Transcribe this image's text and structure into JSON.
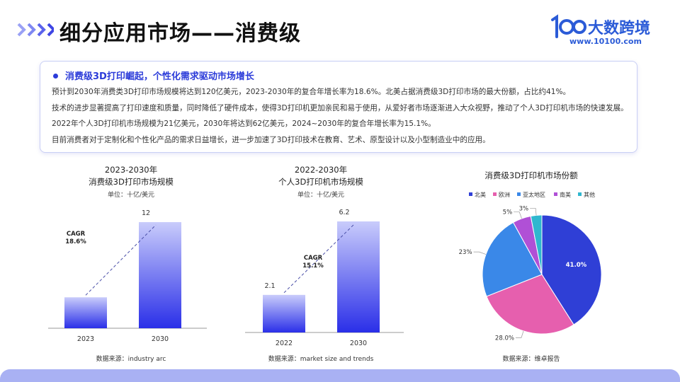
{
  "header": {
    "title": "细分应用市场——消费级",
    "logo_name": "大数跨境",
    "logo_url": "www.10100.com"
  },
  "summary": {
    "heading": "消费级3D打印崛起，个性化需求驱动市场增长",
    "lines": [
      "预计到2030年消费类3D打印市场规模将达到120亿美元，2023-2030年的复合年增长率为18.6%。北美占据消费级3D打印市场的最大份额，占比约41%。",
      "技术的进步显著提高了打印速度和质量，同时降低了硬件成本，使得3D打印机更加亲民和易于使用，从爱好者市场逐渐进入大众视野，推动了个人3D打印机市场的快速发展。2022年个人3D打印机市场规模为21亿美元，2030年将达到62亿美元，2024~2030年的复合年增长率为15.1%。",
      "目前消费者对于定制化和个性化产品的需求日益增长，进一步加速了3D打印技术在教育、艺术、原型设计以及小型制造业中的应用。"
    ]
  },
  "chart_data": [
    {
      "type": "bar",
      "title_line1": "2023-2030年",
      "title_line2": "消费级3D打印市场规模",
      "unit": "单位：十亿/美元",
      "categories": [
        "2023",
        "2030"
      ],
      "values": [
        3.5,
        12
      ],
      "value_labels": [
        "",
        "12"
      ],
      "annotation": {
        "line1": "CAGR",
        "line2": "18.6%"
      },
      "ylim": [
        0,
        12
      ],
      "source": "数据来源：industry arc"
    },
    {
      "type": "bar",
      "title_line1": "2022-2030年",
      "title_line2": "个人3D打印机市场规模",
      "unit": "单位：十亿/美元",
      "categories": [
        "2022",
        "2030"
      ],
      "values": [
        2.1,
        6.2
      ],
      "value_labels": [
        "2.1",
        "6.2"
      ],
      "annotation": {
        "line1": "CAGR",
        "line2": "15.1%"
      },
      "ylim": [
        0,
        6.2
      ],
      "source": "数据来源：market size and trends"
    },
    {
      "type": "pie",
      "title": "消费级3D打印机市场份额",
      "legend": "top",
      "slices": [
        {
          "name": "北美",
          "value": 41.0,
          "label": "41.0%",
          "color": "#2f3fd6"
        },
        {
          "name": "欧洲",
          "value": 28.0,
          "label": "28.0%",
          "color": "#e65fae"
        },
        {
          "name": "亚太地区",
          "value": 23.0,
          "label": "23%",
          "color": "#3a88e8"
        },
        {
          "name": "南美",
          "value": 5.0,
          "label": "5%",
          "color": "#b050d6"
        },
        {
          "name": "其他",
          "value": 3.0,
          "label": "3%",
          "color": "#2fb7cf"
        }
      ],
      "source": "数据来源：维卓报告"
    }
  ],
  "colors": {
    "accent": "#2b3bd9",
    "bar_top": "#c9ccfb",
    "bar_bottom": "#2a2fe8",
    "logo": "#2b5bd7",
    "chevron": "#6b74f0"
  }
}
